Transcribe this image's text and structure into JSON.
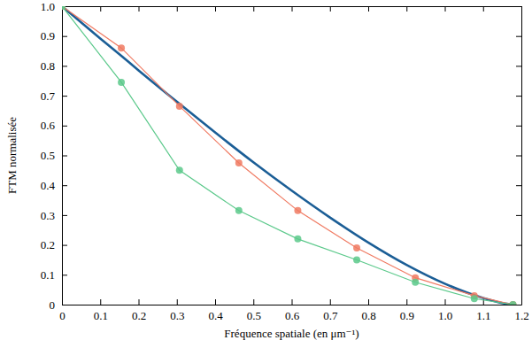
{
  "chart_data": {
    "type": "line",
    "x_label": "Fréquence spatiale (en μm⁻¹)",
    "y_label": "FTM normalisée",
    "xlim": [
      0,
      1.2
    ],
    "ylim": [
      0,
      1
    ],
    "xticks": [
      0,
      0.1,
      0.2,
      0.3,
      0.4,
      0.5,
      0.6,
      0.7,
      0.8,
      0.9,
      {
        "value": 1,
        "label": "1.0"
      },
      1.1,
      1.2
    ],
    "yticks": [
      0,
      0.1,
      0.2,
      0.3,
      0.4,
      0.5,
      0.6,
      0.7,
      0.8,
      0.9,
      {
        "value": 1,
        "label": "1.0"
      }
    ],
    "grid": false,
    "series": [
      {
        "color": "#1b5e96",
        "marker": "none",
        "line_style": "solid",
        "x": [
          0,
          0.1,
          0.15,
          0.2,
          0.3,
          0.4,
          0.5,
          0.6,
          0.7,
          0.8,
          0.9,
          1.0,
          1.1,
          1.15,
          1.18
        ],
        "values": [
          1.0,
          0.892,
          0.839,
          0.785,
          0.68,
          0.577,
          0.477,
          0.382,
          0.292,
          0.208,
          0.133,
          0.07,
          0.022,
          0.005,
          0
        ]
      },
      {
        "color": "#f07a62",
        "marker": "circle",
        "line_style": "solid",
        "x": [
          0,
          0.155,
          0.307,
          0.462,
          0.616,
          0.77,
          0.923,
          1.077,
          1.178
        ],
        "values": [
          1.0,
          0.86,
          0.665,
          0.475,
          0.315,
          0.19,
          0.09,
          0.03,
          0
        ]
      },
      {
        "color": "#5cc98b",
        "marker": "circle",
        "line_style": "solid",
        "x": [
          0,
          0.155,
          0.307,
          0.462,
          0.616,
          0.77,
          0.923,
          1.077,
          1.178
        ],
        "values": [
          1.0,
          0.745,
          0.45,
          0.315,
          0.22,
          0.15,
          0.075,
          0.02,
          0
        ]
      }
    ]
  }
}
